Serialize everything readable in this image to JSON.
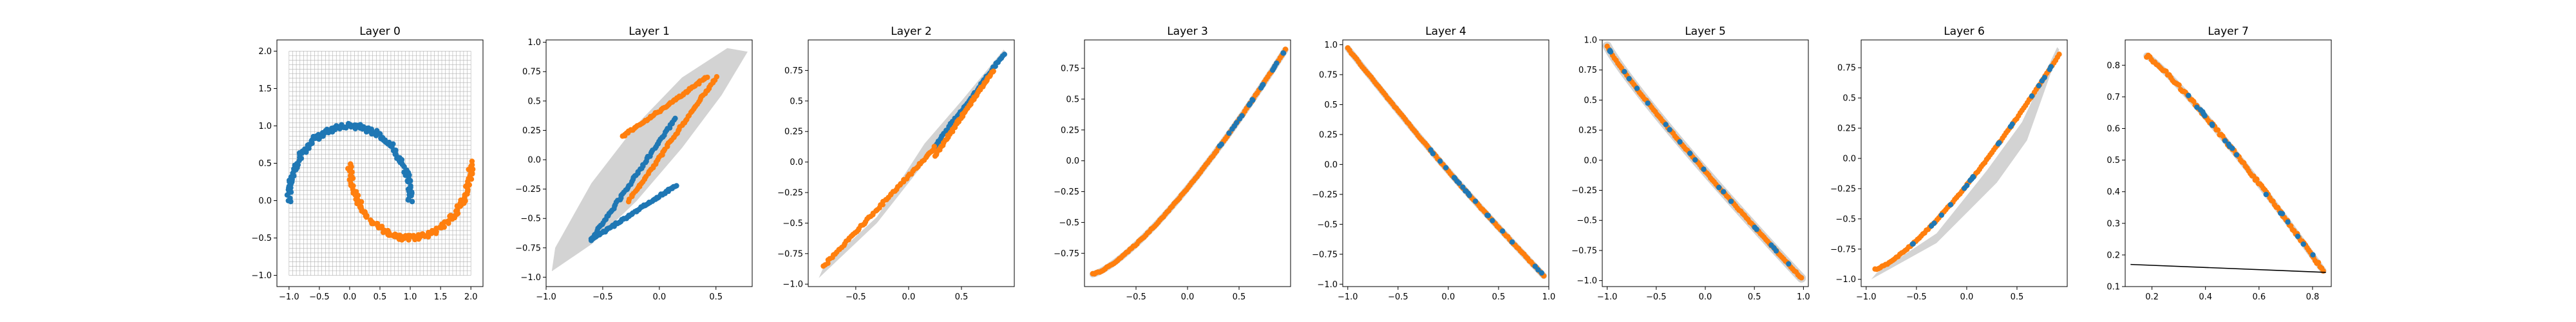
{
  "chart_data": [
    {
      "type": "scatter",
      "title": "Layer 0",
      "xlim": [
        -1.2,
        2.2
      ],
      "ylim": [
        -1.15,
        2.15
      ],
      "xticks": [
        -1.0,
        -0.5,
        0.0,
        0.5,
        1.0,
        1.5,
        2.0
      ],
      "yticks": [
        -1.0,
        -0.5,
        0.0,
        0.5,
        1.0,
        1.5,
        2.0
      ],
      "grid_overlay": true,
      "series": [
        {
          "color": "#1f77b4",
          "curve": "moons_upper",
          "points": 160
        },
        {
          "color": "#ff7f0e",
          "curve": "moons_lower",
          "points": 160
        }
      ]
    },
    {
      "type": "scatter",
      "title": "Layer 1",
      "xlim": [
        -1.0,
        0.82
      ],
      "ylim": [
        -1.08,
        1.02
      ],
      "xticks": [
        -1.0,
        -0.5,
        0.0,
        0.5
      ],
      "yticks": [
        -1.0,
        -0.75,
        -0.5,
        -0.25,
        0.0,
        0.25,
        0.5,
        0.75,
        1.0
      ],
      "region": [
        [
          -0.95,
          -0.95
        ],
        [
          -0.6,
          -0.72
        ],
        [
          -0.2,
          -0.35
        ],
        [
          0.2,
          0.1
        ],
        [
          0.55,
          0.55
        ],
        [
          0.78,
          0.92
        ],
        [
          0.6,
          0.95
        ],
        [
          0.2,
          0.7
        ],
        [
          -0.2,
          0.3
        ],
        [
          -0.6,
          -0.2
        ],
        [
          -0.92,
          -0.75
        ]
      ],
      "series": [
        {
          "color": "#1f77b4",
          "segments": [
            [
              [
                -0.6,
                -0.68
              ],
              [
                0.14,
                0.35
              ]
            ],
            [
              [
                -0.6,
                -0.68
              ],
              [
                0.15,
                -0.22
              ]
            ]
          ]
        },
        {
          "color": "#ff7f0e",
          "segments": [
            [
              [
                -0.32,
                0.2
              ],
              [
                0.42,
                0.7
              ]
            ],
            [
              [
                -0.27,
                -0.35
              ],
              [
                0.5,
                0.7
              ]
            ]
          ]
        }
      ]
    },
    {
      "type": "scatter",
      "title": "Layer 2",
      "xlim": [
        -0.95,
        1.0
      ],
      "ylim": [
        -1.02,
        1.0
      ],
      "xticks": [
        -0.5,
        0.0,
        0.5
      ],
      "yticks": [
        -1.0,
        -0.75,
        -0.5,
        -0.25,
        0.0,
        0.25,
        0.5,
        0.75
      ],
      "region": [
        [
          -0.85,
          -0.95
        ],
        [
          -0.3,
          -0.5
        ],
        [
          0.2,
          0.05
        ],
        [
          0.55,
          0.45
        ],
        [
          0.92,
          0.9
        ],
        [
          0.9,
          0.92
        ],
        [
          0.5,
          0.5
        ],
        [
          0.15,
          0.15
        ],
        [
          -0.3,
          -0.45
        ],
        [
          -0.8,
          -0.85
        ]
      ],
      "series": [
        {
          "color": "#1f77b4",
          "segments": [
            [
              [
                0.24,
                0.12
              ],
              [
                0.9,
                0.88
              ]
            ]
          ]
        },
        {
          "color": "#ff7f0e",
          "segments": [
            [
              [
                -0.8,
                -0.85
              ],
              [
                0.25,
                0.12
              ]
            ],
            [
              [
                0.25,
                0.05
              ],
              [
                0.8,
                0.75
              ]
            ]
          ]
        }
      ]
    },
    {
      "type": "scatter",
      "title": "Layer 3",
      "xlim": [
        -1.0,
        1.0
      ],
      "ylim": [
        -1.02,
        0.98
      ],
      "xticks": [
        -0.5,
        0.0,
        0.5
      ],
      "yticks": [
        -0.75,
        -0.5,
        -0.25,
        0.0,
        0.25,
        0.5,
        0.75
      ],
      "curve": "convex_up",
      "series": [
        {
          "color": "#ff7f0e",
          "range": [
            -0.92,
            0.95
          ]
        },
        {
          "color": "#1f77b4",
          "range": [
            0.25,
            0.95
          ],
          "sparse": true
        }
      ]
    },
    {
      "type": "scatter",
      "title": "Layer 4",
      "xlim": [
        -1.05,
        1.0
      ],
      "ylim": [
        -1.02,
        1.04
      ],
      "xticks": [
        -1.0,
        -0.5,
        0.0,
        0.5,
        1.0
      ],
      "yticks": [
        -1.0,
        -0.75,
        -0.5,
        -0.25,
        0.0,
        0.25,
        0.5,
        0.75,
        1.0
      ],
      "curve": "decreasing",
      "series": [
        {
          "color": "#ff7f0e",
          "range": [
            -1.0,
            0.95
          ]
        },
        {
          "color": "#1f77b4",
          "range": [
            -0.2,
            0.95
          ],
          "sparse": true
        }
      ]
    },
    {
      "type": "scatter",
      "title": "Layer 5",
      "xlim": [
        -1.05,
        1.05
      ],
      "ylim": [
        -1.05,
        1.0
      ],
      "xticks": [
        -1.0,
        -0.5,
        0.0,
        0.5,
        1.0
      ],
      "yticks": [
        -1.0,
        -0.75,
        -0.5,
        -0.25,
        0.0,
        0.25,
        0.5,
        0.75,
        1.0
      ],
      "curve": "decreasing_convex",
      "series": [
        {
          "color": "#ff7f0e",
          "range": [
            -1.0,
            0.98
          ]
        },
        {
          "color": "#1f77b4",
          "range": [
            -1.0,
            0.98
          ],
          "sparse": true
        }
      ]
    },
    {
      "type": "scatter",
      "title": "Layer 6",
      "xlim": [
        -1.05,
        1.0
      ],
      "ylim": [
        -1.06,
        0.98
      ],
      "xticks": [
        -1.0,
        -0.5,
        0.0,
        0.5
      ],
      "yticks": [
        -1.0,
        -0.75,
        -0.5,
        -0.25,
        0.0,
        0.25,
        0.5,
        0.75
      ],
      "curve": "convex_up",
      "region": [
        [
          -0.95,
          -1.0
        ],
        [
          -0.3,
          -0.7
        ],
        [
          0.3,
          -0.2
        ],
        [
          0.6,
          0.15
        ],
        [
          0.92,
          0.9
        ],
        [
          0.9,
          0.92
        ],
        [
          0.55,
          0.3
        ],
        [
          0.2,
          -0.1
        ],
        [
          -0.3,
          -0.62
        ],
        [
          -0.9,
          -0.95
        ]
      ],
      "series": [
        {
          "color": "#ff7f0e",
          "range": [
            -1.0,
            0.92
          ]
        },
        {
          "color": "#1f77b4",
          "range": [
            -0.6,
            0.92
          ],
          "sparse": true
        }
      ]
    },
    {
      "type": "scatter",
      "title": "Layer 7",
      "xlim": [
        0.1,
        0.87
      ],
      "ylim": [
        0.1,
        0.88
      ],
      "xticks": [
        0.2,
        0.4,
        0.6,
        0.8
      ],
      "yticks": [
        0.1,
        0.2,
        0.3,
        0.4,
        0.5,
        0.6,
        0.7,
        0.8
      ],
      "curve": "layer7",
      "boundary": [
        [
          0.12,
          0.17
        ],
        [
          0.85,
          0.145
        ]
      ],
      "series": [
        {
          "color": "#ff7f0e",
          "range": [
            0.18,
            0.84
          ]
        },
        {
          "color": "#1f77b4",
          "range": [
            0.25,
            0.84
          ],
          "sparse": true
        }
      ]
    }
  ]
}
